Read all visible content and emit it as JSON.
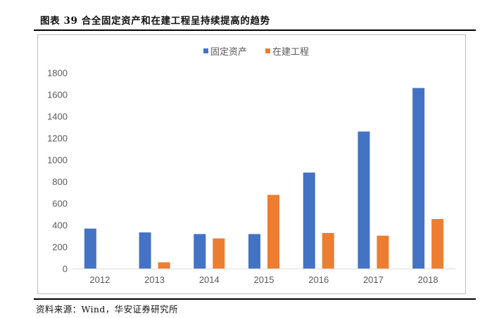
{
  "figure": {
    "title": "图表 39  合全固定资产和在建工程呈持续提高的趋势",
    "source": "资料来源：Wind，华安证券研究所"
  },
  "chart_data": {
    "type": "bar",
    "categories": [
      "2012",
      "2013",
      "2014",
      "2015",
      "2016",
      "2017",
      "2018"
    ],
    "series": [
      {
        "name": "固定资产",
        "color": "#4472C4",
        "values": [
          370,
          335,
          320,
          320,
          885,
          1262,
          1662
        ]
      },
      {
        "name": "在建工程",
        "color": "#ED7D31",
        "values": [
          0,
          60,
          280,
          680,
          330,
          305,
          458
        ]
      }
    ],
    "yticks": [
      0,
      200,
      400,
      600,
      800,
      1000,
      1200,
      1400,
      1600,
      1800
    ],
    "ylim": [
      0,
      1800
    ],
    "grid": false,
    "legend": "top-center"
  }
}
